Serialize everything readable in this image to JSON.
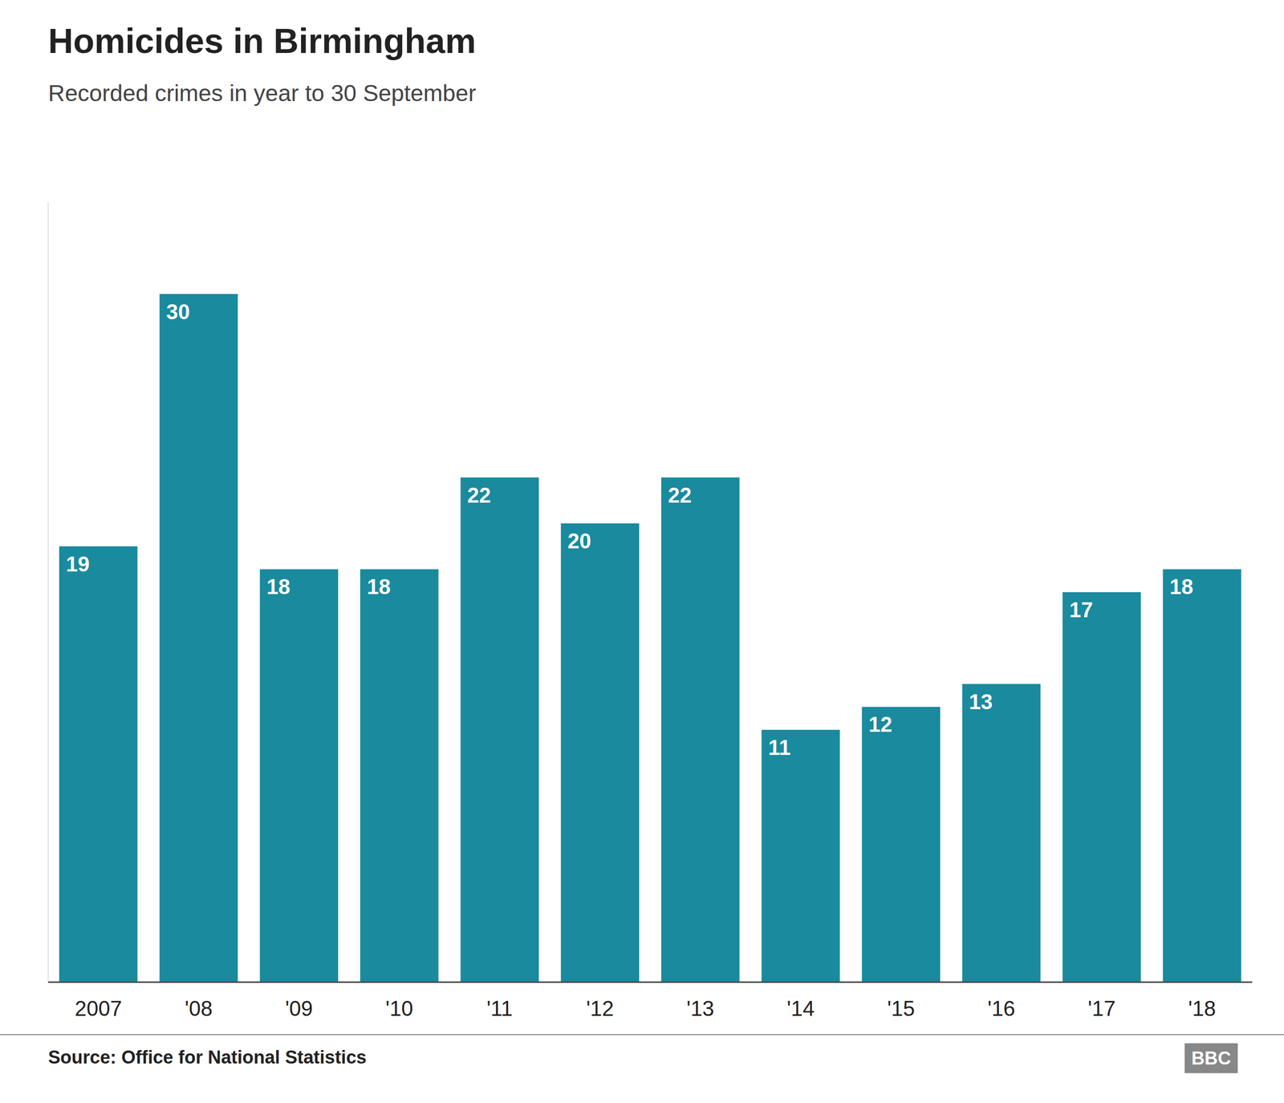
{
  "chart_data": {
    "type": "bar",
    "title": "Homicides in Birmingham",
    "subtitle": "Recorded crimes in year to 30 September",
    "source": "Source: Office for National Statistics",
    "annotations": [
      "BBC"
    ],
    "categories": [
      "2007",
      "'08",
      "'09",
      "'10",
      "'11",
      "'12",
      "'13",
      "'14",
      "'15",
      "'16",
      "'17",
      "'18"
    ],
    "values": [
      19,
      30,
      18,
      18,
      22,
      20,
      22,
      11,
      12,
      13,
      17,
      18
    ],
    "color": "#1a8a9e",
    "ylim": [
      0,
      34
    ],
    "grid": false,
    "data_labels": true,
    "tick_labels": "x"
  }
}
